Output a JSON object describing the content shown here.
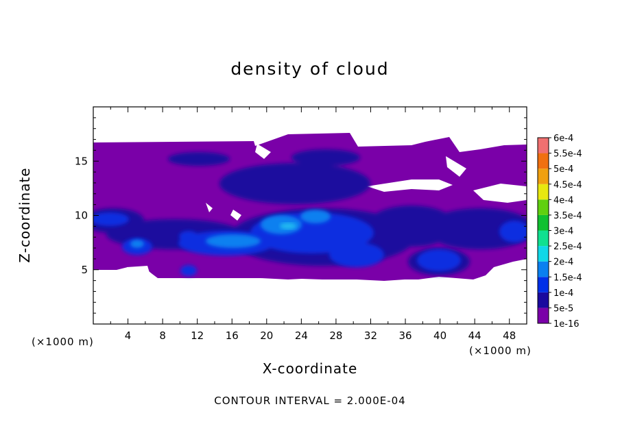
{
  "chart_data": {
    "type": "heatmap",
    "title": "density of cloud",
    "xlabel": "X-coordinate",
    "ylabel": "Z-coordinate",
    "x_unit": "(×1000 m)",
    "xlim": [
      0,
      50
    ],
    "ylim": [
      0,
      20
    ],
    "x_ticks": [
      "4",
      "8",
      "12",
      "16",
      "20",
      "24",
      "28",
      "32",
      "36",
      "40",
      "44",
      "48"
    ],
    "y_ticks": [
      "5",
      "10",
      "15"
    ],
    "colorbar": {
      "labels": [
        "1e-16",
        "5e-5",
        "1e-4",
        "1.5e-4",
        "2e-4",
        "2.5e-4",
        "3e-4",
        "3.5e-4",
        "4e-4",
        "4.5e-4",
        "5e-4",
        "5.5e-4",
        "6e-4"
      ],
      "colors": [
        "#7a00a8",
        "#1a0a9e",
        "#0030e8",
        "#0a80f0",
        "#10d8e8",
        "#10e090",
        "#10c030",
        "#60d010",
        "#e8e810",
        "#f0a010",
        "#f07010",
        "#f03010",
        "#f07070"
      ]
    },
    "contour_interval": "CONTOUR INTERVAL = 2.000E-04",
    "cloud_layer": {
      "z_base": 4.2,
      "z_top": 17.0
    }
  }
}
